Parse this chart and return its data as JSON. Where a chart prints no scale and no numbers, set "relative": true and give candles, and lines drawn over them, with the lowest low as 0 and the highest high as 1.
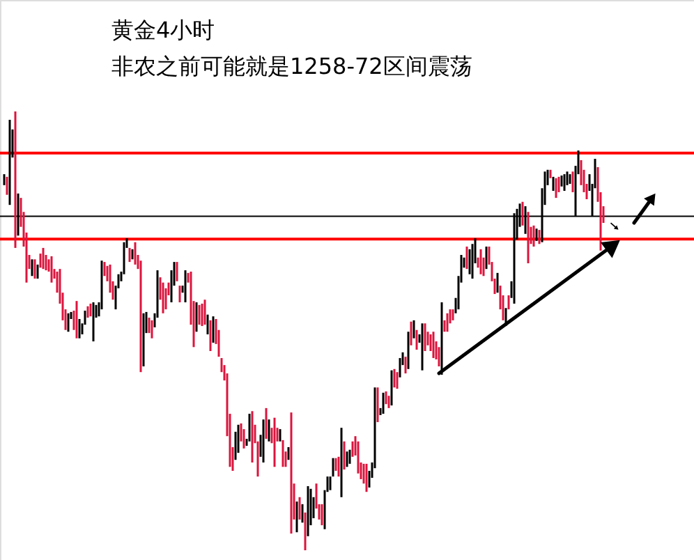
{
  "chart_data": {
    "type": "candlestick",
    "title": "黄金4小时",
    "subtitle": "非农之前可能就是1258-72区间震荡",
    "relative": true,
    "colors": [
      "#000000",
      "#dc143c",
      "#000000",
      "#000000",
      "#dc143c",
      "#000000",
      "#dc143c",
      "#dc143c",
      "#dc143c",
      "#dc143c",
      "#000000",
      "#dc143c",
      "#000000",
      "#dc143c",
      "#dc143c",
      "#dc143c",
      "#dc143c",
      "#dc143c",
      "#dc143c",
      "#dc143c",
      "#dc143c",
      "#dc143c",
      "#dc143c",
      "#000000",
      "#000000",
      "#dc143c",
      "#dc143c",
      "#000000",
      "#000000",
      "#000000",
      "#dc143c",
      "#dc143c",
      "#000000",
      "#000000",
      "#000000",
      "#000000",
      "#dc143c",
      "#dc143c",
      "#dc143c",
      "#dc143c",
      "#000000",
      "#000000",
      "#000000",
      "#000000",
      "#000000",
      "#dc143c",
      "#000000",
      "#dc143c",
      "#dc143c",
      "#dc143c",
      "#000000",
      "#000000",
      "#dc143c",
      "#dc143c",
      "#000000",
      "#000000",
      "#dc143c",
      "#dc143c",
      "#dc143c",
      "#dc143c",
      "#000000",
      "#000000",
      "#dc143c",
      "#dc143c",
      "#000000",
      "#000000",
      "#dc143c",
      "#dc143c",
      "#dc143c",
      "#000000",
      "#dc143c",
      "#dc143c",
      "#dc143c",
      "#000000",
      "#dc143c",
      "#000000",
      "#dc143c",
      "#dc143c",
      "#dc143c",
      "#dc143c",
      "#dc143c",
      "#dc143c",
      "#dc143c",
      "#000000",
      "#000000",
      "#dc143c",
      "#dc143c",
      "#000000",
      "#000000",
      "#dc143c",
      "#dc143c",
      "#dc143c",
      "#000000",
      "#000000",
      "#dc143c",
      "#000000",
      "#dc143c",
      "#dc143c",
      "#dc143c",
      "#000000",
      "#dc143c",
      "#dc143c",
      "#000000",
      "#dc143c",
      "#dc143c",
      "#000000",
      "#dc143c",
      "#000000",
      "#dc143c",
      "#000000",
      "#000000",
      "#000000",
      "#dc143c",
      "#dc143c",
      "#dc143c",
      "#000000",
      "#000000",
      "#000000",
      "#000000",
      "#dc143c",
      "#dc143c",
      "#000000",
      "#dc143c",
      "#000000",
      "#000000",
      "#dc143c",
      "#dc143c",
      "#dc143c",
      "#dc143c",
      "#dc143c",
      "#dc143c",
      "#000000",
      "#000000",
      "#000000",
      "#dc143c",
      "#000000",
      "#000000",
      "#dc143c",
      "#dc143c",
      "#000000",
      "#dc143c",
      "#dc143c",
      "#000000",
      "#000000",
      "#dc143c",
      "#000000",
      "#dc143c",
      "#000000",
      "#dc143c",
      "#000000",
      "#000000",
      "#dc143c",
      "#dc143c",
      "#dc143c",
      "#dc143c",
      "#dc143c",
      "#dc143c",
      "#000000",
      "#dc143c",
      "#dc143c",
      "#dc143c",
      "#dc143c",
      "#000000",
      "#000000",
      "#000000",
      "#000000",
      "#dc143c",
      "#000000",
      "#000000",
      "#000000",
      "#dc143c",
      "#dc143c",
      "#dc143c",
      "#000000",
      "#dc143c",
      "#dc143c",
      "#dc143c",
      "#000000",
      "#dc143c",
      "#dc143c",
      "#000000",
      "#dc143c",
      "#000000",
      "#000000",
      "#000000",
      "#000000",
      "#dc143c",
      "#000000",
      "#dc143c",
      "#dc143c",
      "#dc143c",
      "#000000",
      "#dc143c",
      "#000000",
      "#000000",
      "#000000",
      "#dc143c",
      "#000000",
      "#dc143c",
      "#dc143c",
      "#000000",
      "#000000",
      "#000000",
      "#000000",
      "#dc143c",
      "#000000",
      "#000000",
      "#dc143c",
      "#dc143c",
      "#dc143c",
      "#000000",
      "#000000",
      "#000000",
      "#dc143c",
      "#dc143c",
      "#dc143c"
    ],
    "categories": [
      null,
      null,
      null,
      null,
      null,
      null,
      null,
      null,
      null,
      null,
      null,
      null,
      null,
      null,
      null,
      null,
      null,
      null,
      null,
      null,
      null,
      null,
      null,
      null,
      null,
      null,
      null,
      null,
      null,
      null,
      null,
      null,
      null,
      null,
      null,
      null,
      null,
      null,
      null,
      null,
      null,
      null,
      null,
      null,
      null,
      null,
      null,
      null,
      null,
      null,
      null,
      null,
      null,
      null,
      null,
      null,
      null,
      null,
      null,
      null,
      null,
      null,
      null,
      null,
      null,
      null,
      null,
      null,
      null,
      null,
      null,
      null,
      null,
      null,
      null,
      null,
      null,
      null,
      null,
      null,
      null,
      null,
      null,
      null,
      null,
      null,
      null,
      null,
      null,
      null,
      null,
      null,
      null,
      null,
      null,
      null,
      null,
      null,
      null,
      null,
      null,
      null,
      null,
      null,
      null,
      null,
      null,
      null,
      null,
      null,
      null,
      null,
      null,
      null,
      null,
      null,
      null,
      null,
      null,
      null,
      null,
      null,
      null,
      null,
      null,
      null,
      null,
      null,
      null,
      null,
      null,
      null,
      null,
      null,
      null,
      null,
      null,
      null,
      null,
      null,
      null,
      null,
      null,
      null,
      null,
      null,
      null,
      null,
      null,
      null,
      null,
      null,
      null,
      null,
      null,
      null,
      null,
      null,
      null,
      null,
      null,
      null,
      null,
      null,
      null,
      null,
      null,
      null,
      null,
      null,
      null,
      null,
      null,
      null,
      null,
      null,
      null,
      null,
      null,
      null,
      null,
      null,
      null,
      null,
      null,
      null,
      null,
      null,
      null,
      null,
      null,
      null,
      null,
      null,
      null,
      null,
      null,
      null,
      null,
      null,
      null,
      null,
      null,
      null,
      null,
      null,
      null,
      null,
      null,
      null,
      null,
      null,
      null,
      null,
      null,
      null
    ],
    "ohlc": [
      [
        0.832,
        0.857,
        0.832,
        0.857
      ],
      [
        0.851,
        0.851,
        0.81,
        0.81
      ],
      [
        0.787,
        0.981,
        0.787,
        0.981
      ],
      [
        0.895,
        0.959,
        0.895,
        0.959
      ],
      [
        1,
        1,
        0.689,
        0.689
      ],
      [
        0.717,
        0.813,
        0.717,
        0.813
      ],
      [
        0.803,
        0.803,
        0.737,
        0.737
      ],
      [
        0.771,
        0.771,
        0.692,
        0.692
      ],
      [
        0.724,
        0.724,
        0.61,
        0.61
      ],
      [
        0.673,
        0.673,
        0.641,
        0.641
      ],
      [
        0.625,
        0.663,
        0.625,
        0.663
      ],
      [
        0.663,
        0.663,
        0.619,
        0.619
      ],
      [
        0.619,
        0.651,
        0.619,
        0.651
      ],
      [
        0.676,
        0.676,
        0.644,
        0.644
      ],
      [
        0.689,
        0.689,
        0.641,
        0.641
      ],
      [
        0.673,
        0.673,
        0.638,
        0.638
      ],
      [
        0.663,
        0.663,
        0.635,
        0.635
      ],
      [
        0.67,
        0.67,
        0.61,
        0.61
      ],
      [
        0.641,
        0.641,
        0.619,
        0.619
      ],
      [
        0.635,
        0.635,
        0.587,
        0.587
      ],
      [
        0.641,
        0.641,
        0.562,
        0.562
      ],
      [
        0.587,
        0.587,
        0.524,
        0.524
      ],
      [
        0.549,
        0.549,
        0.502,
        0.502
      ],
      [
        0.498,
        0.54,
        0.498,
        0.54
      ],
      [
        0.527,
        0.543,
        0.527,
        0.543
      ],
      [
        0.546,
        0.546,
        0.502,
        0.502
      ],
      [
        0.568,
        0.568,
        0.483,
        0.483
      ],
      [
        0.483,
        0.527,
        0.483,
        0.527
      ],
      [
        0.492,
        0.517,
        0.492,
        0.517
      ],
      [
        0.514,
        0.546,
        0.514,
        0.546
      ],
      [
        0.556,
        0.556,
        0.53,
        0.53
      ],
      [
        0.562,
        0.562,
        0.533,
        0.533
      ],
      [
        0.476,
        0.565,
        0.476,
        0.565
      ],
      [
        0.53,
        0.559,
        0.53,
        0.559
      ],
      [
        0.533,
        0.565,
        0.533,
        0.565
      ],
      [
        0.549,
        0.66,
        0.549,
        0.66
      ],
      [
        0.657,
        0.657,
        0.625,
        0.625
      ],
      [
        0.648,
        0.648,
        0.613,
        0.613
      ],
      [
        0.651,
        0.651,
        0.587,
        0.587
      ],
      [
        0.613,
        0.613,
        0.571,
        0.571
      ],
      [
        0.549,
        0.603,
        0.549,
        0.603
      ],
      [
        0.597,
        0.629,
        0.597,
        0.629
      ],
      [
        0.613,
        0.635,
        0.613,
        0.635
      ],
      [
        0.629,
        0.702,
        0.629,
        0.702
      ],
      [
        0.689,
        0.711,
        0.689,
        0.711
      ],
      [
        0.689,
        0.689,
        0.657,
        0.657
      ],
      [
        0.663,
        0.686,
        0.663,
        0.686
      ],
      [
        0.702,
        0.702,
        0.651,
        0.651
      ],
      [
        0.673,
        0.673,
        0.641,
        0.641
      ],
      [
        0.66,
        0.66,
        0.406,
        0.406
      ],
      [
        0.419,
        0.54,
        0.419,
        0.54
      ],
      [
        0.495,
        0.543,
        0.495,
        0.543
      ],
      [
        0.53,
        0.53,
        0.495,
        0.495
      ],
      [
        0.524,
        0.524,
        0.483,
        0.483
      ],
      [
        0.508,
        0.54,
        0.508,
        0.54
      ],
      [
        0.53,
        0.638,
        0.53,
        0.638
      ],
      [
        0.622,
        0.622,
        0.571,
        0.571
      ],
      [
        0.61,
        0.61,
        0.54,
        0.54
      ],
      [
        0.597,
        0.597,
        0.549,
        0.549
      ],
      [
        0.61,
        0.61,
        0.581,
        0.581
      ],
      [
        0.565,
        0.638,
        0.565,
        0.638
      ],
      [
        0.603,
        0.657,
        0.603,
        0.657
      ],
      [
        0.657,
        0.657,
        0.613,
        0.613
      ],
      [
        0.603,
        0.603,
        0.565,
        0.565
      ],
      [
        0.587,
        0.603,
        0.587,
        0.603
      ],
      [
        0.565,
        0.638,
        0.565,
        0.638
      ],
      [
        0.632,
        0.632,
        0.61,
        0.61
      ],
      [
        0.635,
        0.635,
        0.514,
        0.514
      ],
      [
        0.568,
        0.568,
        0.463,
        0.463
      ],
      [
        0.498,
        0.565,
        0.498,
        0.565
      ],
      [
        0.559,
        0.559,
        0.514,
        0.514
      ],
      [
        0.562,
        0.562,
        0.511,
        0.511
      ],
      [
        0.571,
        0.571,
        0.514,
        0.514
      ],
      [
        0.492,
        0.537,
        0.492,
        0.537
      ],
      [
        0.524,
        0.524,
        0.454,
        0.454
      ],
      [
        0.473,
        0.533,
        0.473,
        0.533
      ],
      [
        0.527,
        0.527,
        0.47,
        0.47
      ],
      [
        0.502,
        0.502,
        0.441,
        0.441
      ],
      [
        0.438,
        0.438,
        0.406,
        0.406
      ],
      [
        0.422,
        0.422,
        0.387,
        0.387
      ],
      [
        0.403,
        0.403,
        0.26,
        0.26
      ],
      [
        0.311,
        0.311,
        0.19,
        0.19
      ],
      [
        0.235,
        0.235,
        0.181,
        0.181
      ],
      [
        0.206,
        0.27,
        0.206,
        0.27
      ],
      [
        0.222,
        0.286,
        0.222,
        0.286
      ],
      [
        0.289,
        0.289,
        0.248,
        0.248
      ],
      [
        0.276,
        0.276,
        0.232,
        0.232
      ],
      [
        0.238,
        0.254,
        0.238,
        0.254
      ],
      [
        0.248,
        0.311,
        0.248,
        0.311
      ],
      [
        0.317,
        0.317,
        0.2,
        0.2
      ],
      [
        0.286,
        0.286,
        0.244,
        0.244
      ],
      [
        0.248,
        0.248,
        0.168,
        0.168
      ],
      [
        0.213,
        0.263,
        0.213,
        0.263
      ],
      [
        0.2,
        0.298,
        0.2,
        0.298
      ],
      [
        0.324,
        0.324,
        0.254,
        0.254
      ],
      [
        0.248,
        0.298,
        0.248,
        0.298
      ],
      [
        0.279,
        0.279,
        0.244,
        0.244
      ],
      [
        0.302,
        0.302,
        0.19,
        0.19
      ],
      [
        0.279,
        0.279,
        0.248,
        0.248
      ],
      [
        0.248,
        0.276,
        0.248,
        0.276
      ],
      [
        0.251,
        0.251,
        0.19,
        0.19
      ],
      [
        0.225,
        0.225,
        0.19,
        0.19
      ],
      [
        0.206,
        0.235,
        0.206,
        0.235
      ],
      [
        0.314,
        0.314,
        0.038,
        0.038
      ],
      [
        0.152,
        0.152,
        0.07,
        0.07
      ],
      [
        0.041,
        0.111,
        0.041,
        0.111
      ],
      [
        0.121,
        0.121,
        0.07,
        0.07
      ],
      [
        0.063,
        0.105,
        0.063,
        0.105
      ],
      [
        0.086,
        0.086,
        0,
        0
      ],
      [
        0.032,
        0.146,
        0.032,
        0.146
      ],
      [
        0.057,
        0.14,
        0.057,
        0.14
      ],
      [
        0.073,
        0.121,
        0.073,
        0.121
      ],
      [
        0.152,
        0.152,
        0.095,
        0.095
      ],
      [
        0.105,
        0.105,
        0.07,
        0.07
      ],
      [
        0.105,
        0.105,
        0.057,
        0.057
      ],
      [
        0.048,
        0.137,
        0.048,
        0.137
      ],
      [
        0.133,
        0.168,
        0.133,
        0.168
      ],
      [
        0.137,
        0.168,
        0.137,
        0.168
      ],
      [
        0.168,
        0.21,
        0.168,
        0.21
      ],
      [
        0.21,
        0.21,
        0.181,
        0.181
      ],
      [
        0.213,
        0.213,
        0.168,
        0.168
      ],
      [
        0.121,
        0.279,
        0.121,
        0.279
      ],
      [
        0.248,
        0.248,
        0.184,
        0.184
      ],
      [
        0.19,
        0.225,
        0.19,
        0.225
      ],
      [
        0.197,
        0.229,
        0.197,
        0.229
      ],
      [
        0.248,
        0.248,
        0.213,
        0.213
      ],
      [
        0.26,
        0.26,
        0.216,
        0.216
      ],
      [
        0.248,
        0.248,
        0.175,
        0.175
      ],
      [
        0.2,
        0.2,
        0.162,
        0.162
      ],
      [
        0.197,
        0.197,
        0.152,
        0.152
      ],
      [
        0.197,
        0.197,
        0.133,
        0.133
      ],
      [
        0.143,
        0.181,
        0.143,
        0.181
      ],
      [
        0.165,
        0.2,
        0.165,
        0.2
      ],
      [
        0.187,
        0.371,
        0.187,
        0.371
      ],
      [
        0.371,
        0.371,
        0.292,
        0.292
      ],
      [
        0.308,
        0.324,
        0.308,
        0.324
      ],
      [
        0.311,
        0.359,
        0.311,
        0.359
      ],
      [
        0.362,
        0.362,
        0.333,
        0.333
      ],
      [
        0.352,
        0.352,
        0.324,
        0.324
      ],
      [
        0.33,
        0.41,
        0.33,
        0.41
      ],
      [
        0.413,
        0.413,
        0.371,
        0.371
      ],
      [
        0.406,
        0.406,
        0.368,
        0.368
      ],
      [
        0.394,
        0.438,
        0.394,
        0.438
      ],
      [
        0.422,
        0.451,
        0.422,
        0.451
      ],
      [
        0.441,
        0.441,
        0.403,
        0.403
      ],
      [
        0.413,
        0.498,
        0.413,
        0.498
      ],
      [
        0.521,
        0.521,
        0.467,
        0.467
      ],
      [
        0.483,
        0.524,
        0.483,
        0.524
      ],
      [
        0.502,
        0.502,
        0.457,
        0.457
      ],
      [
        0.473,
        0.492,
        0.473,
        0.492
      ],
      [
        0.41,
        0.517,
        0.41,
        0.517
      ],
      [
        0.517,
        0.517,
        0.454,
        0.454
      ],
      [
        0.498,
        0.498,
        0.467,
        0.467
      ],
      [
        0.492,
        0.492,
        0.454,
        0.454
      ],
      [
        0.498,
        0.498,
        0.438,
        0.438
      ],
      [
        0.476,
        0.476,
        0.435,
        0.435
      ],
      [
        0.463,
        0.463,
        0.419,
        0.419
      ],
      [
        0.4,
        0.565,
        0.4,
        0.565
      ],
      [
        0.524,
        0.524,
        0.498,
        0.498
      ],
      [
        0.54,
        0.54,
        0.498,
        0.498
      ],
      [
        0.549,
        0.549,
        0.517,
        0.517
      ],
      [
        0.549,
        0.549,
        0.524,
        0.524
      ],
      [
        0.54,
        0.575,
        0.54,
        0.575
      ],
      [
        0.549,
        0.625,
        0.549,
        0.625
      ],
      [
        0.61,
        0.673,
        0.61,
        0.673
      ],
      [
        0.644,
        0.667,
        0.644,
        0.667
      ],
      [
        0.692,
        0.692,
        0.641,
        0.641
      ],
      [
        0.629,
        0.686,
        0.629,
        0.686
      ],
      [
        0.619,
        0.698,
        0.619,
        0.698
      ],
      [
        0.654,
        0.711,
        0.654,
        0.711
      ],
      [
        0.667,
        0.667,
        0.644,
        0.644
      ],
      [
        0.686,
        0.686,
        0.629,
        0.629
      ],
      [
        0.667,
        0.667,
        0.625,
        0.625
      ],
      [
        0.641,
        0.692,
        0.641,
        0.692
      ],
      [
        0.692,
        0.692,
        0.651,
        0.651
      ],
      [
        0.657,
        0.657,
        0.613,
        0.613
      ],
      [
        0.619,
        0.619,
        0.584,
        0.584
      ],
      [
        0.587,
        0.632,
        0.587,
        0.632
      ],
      [
        0.603,
        0.603,
        0.549,
        0.549
      ],
      [
        0.581,
        0.581,
        0.524,
        0.524
      ],
      [
        0.511,
        0.552,
        0.511,
        0.552
      ],
      [
        0.581,
        0.581,
        0.549,
        0.549
      ],
      [
        0.575,
        0.613,
        0.575,
        0.613
      ],
      [
        0.562,
        0.768,
        0.562,
        0.768
      ],
      [
        0.708,
        0.778,
        0.708,
        0.778
      ],
      [
        0.737,
        0.79,
        0.737,
        0.79
      ],
      [
        0.794,
        0.794,
        0.74,
        0.74
      ],
      [
        0.721,
        0.784,
        0.721,
        0.784
      ],
      [
        0.771,
        0.771,
        0.654,
        0.654
      ],
      [
        0.737,
        0.737,
        0.698,
        0.698
      ],
      [
        0.74,
        0.74,
        0.692,
        0.692
      ],
      [
        0.705,
        0.733,
        0.705,
        0.733
      ],
      [
        0.73,
        0.73,
        0.698,
        0.698
      ],
      [
        0.702,
        0.825,
        0.702,
        0.825
      ],
      [
        0.787,
        0.863,
        0.787,
        0.863
      ],
      [
        0.832,
        0.867,
        0.832,
        0.867
      ],
      [
        0.867,
        0.867,
        0.848,
        0.848
      ],
      [
        0.819,
        0.851,
        0.819,
        0.851
      ],
      [
        0.848,
        0.848,
        0.803,
        0.803
      ],
      [
        0.851,
        0.851,
        0.816,
        0.816
      ],
      [
        0.829,
        0.854,
        0.829,
        0.854
      ],
      [
        0.819,
        0.857,
        0.819,
        0.857
      ],
      [
        0.832,
        0.863,
        0.832,
        0.863
      ],
      [
        0.835,
        0.857,
        0.835,
        0.857
      ],
      [
        0.863,
        0.863,
        0.816,
        0.816
      ],
      [
        0.762,
        0.876,
        0.762,
        0.876
      ],
      [
        0.857,
        0.911,
        0.857,
        0.911
      ],
      [
        0.889,
        0.889,
        0.832,
        0.832
      ],
      [
        0.867,
        0.867,
        0.816,
        0.816
      ],
      [
        0.835,
        0.835,
        0.8,
        0.8
      ],
      [
        0.819,
        0.857,
        0.819,
        0.857
      ],
      [
        0.762,
        0.835,
        0.762,
        0.835
      ],
      [
        0.825,
        0.892,
        0.825,
        0.892
      ],
      [
        0.873,
        0.873,
        0.794,
        0.794
      ],
      [
        0.816,
        0.816,
        0.683,
        0.683
      ],
      [
        0.784,
        0.784,
        0.746,
        0.746
      ]
    ],
    "ref_lines": [
      {
        "axis": "y",
        "value": 0.905,
        "color": "#ff0000"
      },
      {
        "axis": "y",
        "value": 0.761,
        "color": "#000000"
      },
      {
        "axis": "y",
        "value": 0.709,
        "color": "#ff0000"
      }
    ]
  }
}
